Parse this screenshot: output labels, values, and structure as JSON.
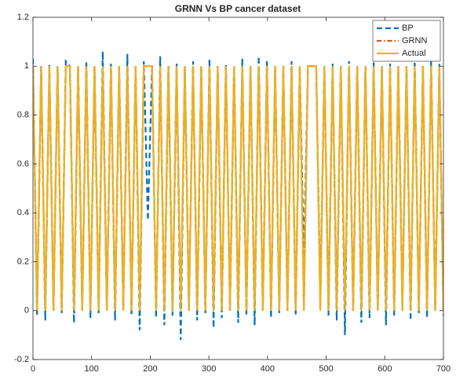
{
  "chart_data": {
    "type": "line",
    "title": "GRNN Vs BP cancer dataset",
    "x": [
      0,
      7,
      14,
      21,
      28,
      35,
      42,
      49,
      56,
      63,
      70,
      77,
      84,
      91,
      98,
      105,
      112,
      119,
      126,
      133,
      140,
      147,
      154,
      161,
      168,
      175,
      182,
      189,
      196,
      203,
      210,
      217,
      224,
      231,
      238,
      245,
      252,
      259,
      266,
      273,
      280,
      287,
      294,
      301,
      308,
      315,
      322,
      329,
      336,
      343,
      350,
      357,
      364,
      371,
      378,
      385,
      392,
      399,
      406,
      413,
      420,
      427,
      434,
      441,
      448,
      455,
      462,
      469,
      476,
      483,
      490,
      497,
      504,
      511,
      518,
      525,
      532,
      539,
      546,
      553,
      560,
      567,
      574,
      581,
      588,
      595,
      602,
      609,
      616,
      623,
      630,
      637,
      644,
      651,
      658,
      665,
      672,
      679,
      686,
      693,
      700
    ],
    "series": [
      {
        "name": "BP",
        "color": "#0072BD",
        "dash": "dashed",
        "values": [
          1.03,
          -0.02,
          1,
          -0.04,
          1.01,
          0,
          1,
          -0.01,
          1.02,
          1,
          -0.05,
          1,
          0,
          1.02,
          -0.03,
          1,
          -0.01,
          1.06,
          0,
          1.01,
          -0.04,
          1,
          0,
          1.05,
          -0.02,
          1,
          -0.08,
          1.02,
          0.37,
          1,
          -0.03,
          1.04,
          -0.06,
          1,
          -0.02,
          1.01,
          -0.12,
          1,
          0,
          1.02,
          -0.04,
          1,
          -0.01,
          1.03,
          -0.07,
          1,
          -0.03,
          1.01,
          0,
          1,
          -0.05,
          1.03,
          -0.02,
          1,
          -0.06,
          1.04,
          0,
          1.02,
          -0.03,
          1,
          -0.01,
          1,
          0,
          1.02,
          -0.02,
          1,
          0.2,
          1,
          1,
          1,
          0.06,
          1,
          -0.02,
          1.01,
          -0.04,
          1,
          -0.1,
          1.02,
          0,
          1,
          -0.05,
          1,
          -0.03,
          1.02,
          0,
          1,
          -0.06,
          1.01,
          -0.02,
          1,
          0.03,
          1,
          -0.04,
          1.02,
          -0.01,
          1,
          -0.03,
          1.02,
          0,
          1.01,
          -0.02
        ]
      },
      {
        "name": "GRNN",
        "color": "#D95319",
        "dash": "dashdot",
        "values": [
          1,
          0,
          1,
          0,
          1,
          0,
          1,
          0,
          1,
          1,
          0,
          1,
          0,
          1,
          0,
          1,
          0,
          1,
          0,
          1,
          0,
          1,
          0,
          1,
          0,
          1,
          0,
          1,
          1,
          1,
          0,
          1,
          0,
          1,
          0,
          1,
          0,
          1,
          0,
          1,
          0,
          1,
          0,
          1,
          0,
          1,
          0,
          1,
          0,
          1,
          0,
          1,
          0,
          1,
          0,
          1,
          0,
          1,
          0,
          1,
          0,
          1,
          0,
          1,
          0,
          1,
          0,
          1,
          1,
          1,
          0,
          1,
          0,
          1,
          0,
          1,
          0,
          1,
          0,
          1,
          0,
          1,
          0,
          1,
          0,
          1,
          0,
          1,
          0,
          1,
          0,
          1,
          0,
          1,
          0,
          1,
          0,
          1,
          0,
          1,
          0
        ]
      },
      {
        "name": "Actual",
        "color": "#EDB120",
        "dash": "solid",
        "values": [
          1,
          0,
          1,
          0,
          1,
          0,
          1,
          0,
          1,
          1,
          0,
          1,
          0,
          1,
          0,
          1,
          0,
          1,
          0,
          1,
          0,
          1,
          0,
          1,
          0,
          1,
          0,
          1,
          1,
          1,
          0,
          1,
          0,
          1,
          0,
          1,
          0,
          1,
          0,
          1,
          0,
          1,
          0,
          1,
          0,
          1,
          0,
          1,
          0,
          1,
          0,
          1,
          0,
          1,
          0,
          1,
          0,
          1,
          0,
          1,
          0,
          1,
          0,
          1,
          0,
          1,
          0,
          1,
          1,
          1,
          0,
          1,
          0,
          1,
          0,
          1,
          0,
          1,
          0,
          1,
          0,
          1,
          0,
          1,
          0,
          1,
          0,
          1,
          0,
          1,
          0,
          1,
          0,
          1,
          0,
          1,
          0,
          1,
          0,
          1,
          0
        ]
      }
    ],
    "xlim": [
      0,
      700
    ],
    "xticks": [
      0,
      100,
      200,
      300,
      400,
      500,
      600,
      700
    ],
    "ylim": [
      -0.2,
      1.2
    ],
    "yticks": [
      -0.2,
      0,
      0.2,
      0.4,
      0.6,
      0.8,
      1,
      1.2
    ],
    "legend": "northeast"
  }
}
